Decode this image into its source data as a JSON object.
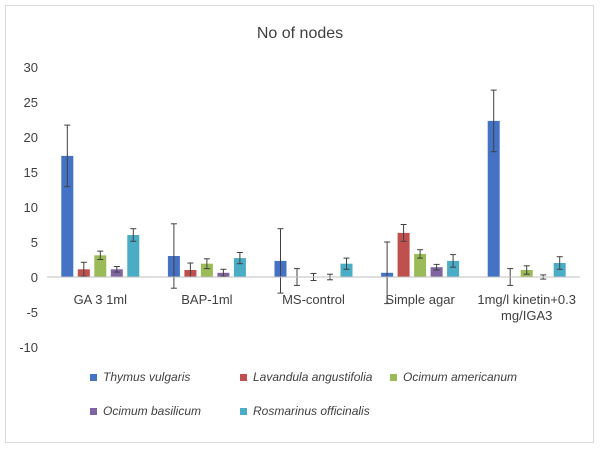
{
  "chart_data": {
    "type": "bar",
    "title": "No of nodes",
    "xlabel": "",
    "ylabel": "",
    "ylim": [
      -10,
      30
    ],
    "yticks": [
      "30",
      "25",
      "20",
      "15",
      "10",
      "5",
      "0",
      "-5",
      "-10"
    ],
    "ytick_values": [
      30,
      25,
      20,
      15,
      10,
      null,
      0,
      -5,
      -10
    ],
    "grid": false,
    "legend_position": "bottom",
    "categories": [
      "GA 3 1ml",
      "BAP-1ml",
      "MS-control",
      "Simple agar",
      "1mg/l kinetin+0.3 mg/IGA3"
    ],
    "category_lines": [
      [
        "GA 3 1ml"
      ],
      [
        "BAP-1ml"
      ],
      [
        "MS-control"
      ],
      [
        "Simple agar"
      ],
      [
        "1mg/l kinetin+0.3",
        "mg/IGA3"
      ]
    ],
    "series": [
      {
        "name": "Thymus vulgaris",
        "color": "#4472c4",
        "values": [
          17.3,
          3.0,
          2.3,
          0.6,
          22.3
        ],
        "errors": [
          4.4,
          4.6,
          4.6,
          4.4,
          4.4
        ]
      },
      {
        "name": "Lavandula angustifolia",
        "color": "#c0504d",
        "values": [
          1.1,
          1.0,
          0.0,
          6.3,
          0.0
        ],
        "errors": [
          1.0,
          1.0,
          1.2,
          1.2,
          1.2
        ]
      },
      {
        "name": "Ocimum americanum",
        "color": "#9bbb59",
        "values": [
          3.1,
          1.9,
          0.0,
          3.3,
          1.0
        ],
        "errors": [
          0.6,
          0.7,
          0.5,
          0.6,
          0.6
        ]
      },
      {
        "name": "Ocimum basilicum",
        "color": "#8064a2",
        "values": [
          1.1,
          0.6,
          0.0,
          1.4,
          0.0
        ],
        "errors": [
          0.4,
          0.5,
          0.4,
          0.4,
          0.3
        ]
      },
      {
        "name": "Rosmarinus officinalis",
        "color": "#4bacc6",
        "values": [
          6.0,
          2.7,
          1.9,
          2.3,
          2.0
        ],
        "errors": [
          0.9,
          0.8,
          0.8,
          0.9,
          0.9
        ]
      }
    ]
  }
}
